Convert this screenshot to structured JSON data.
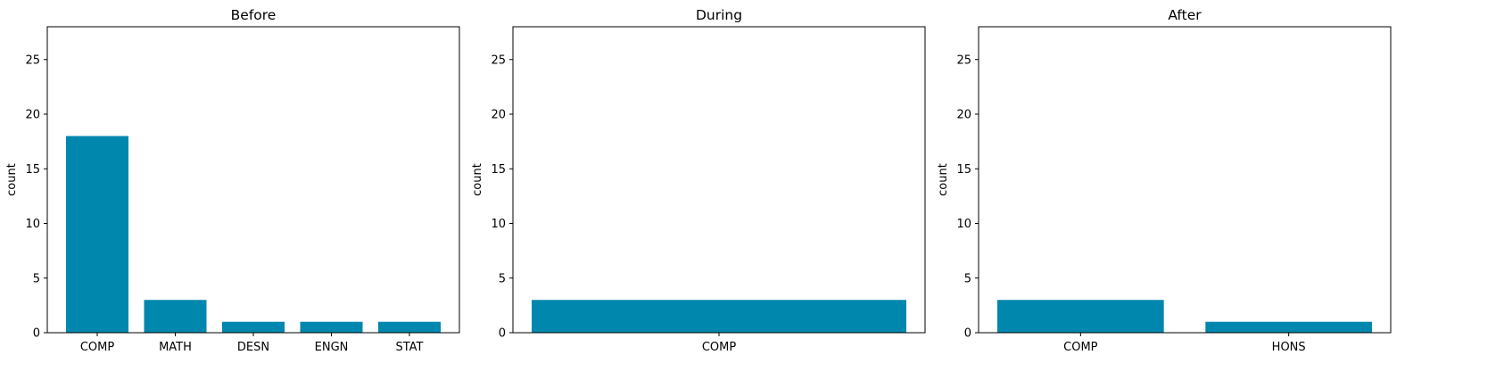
{
  "chart_data": [
    {
      "type": "bar",
      "title": "Before",
      "xlabel": "",
      "ylabel": "count",
      "ylim": [
        0,
        28
      ],
      "yticks": [
        0,
        5,
        10,
        15,
        20,
        25
      ],
      "categories": [
        "COMP",
        "MATH",
        "DESN",
        "ENGN",
        "STAT"
      ],
      "values": [
        18,
        3,
        1,
        1,
        1
      ],
      "color": "#0087ae",
      "grid": false
    },
    {
      "type": "bar",
      "title": "During",
      "xlabel": "",
      "ylabel": "count",
      "ylim": [
        0,
        28
      ],
      "yticks": [
        0,
        5,
        10,
        15,
        20,
        25
      ],
      "categories": [
        "COMP"
      ],
      "values": [
        3
      ],
      "color": "#0087ae",
      "grid": false
    },
    {
      "type": "bar",
      "title": "After",
      "xlabel": "",
      "ylabel": "count",
      "ylim": [
        0,
        28
      ],
      "yticks": [
        0,
        5,
        10,
        15,
        20,
        25
      ],
      "categories": [
        "COMP",
        "HONS"
      ],
      "values": [
        3,
        1
      ],
      "color": "#0087ae",
      "grid": false
    }
  ]
}
